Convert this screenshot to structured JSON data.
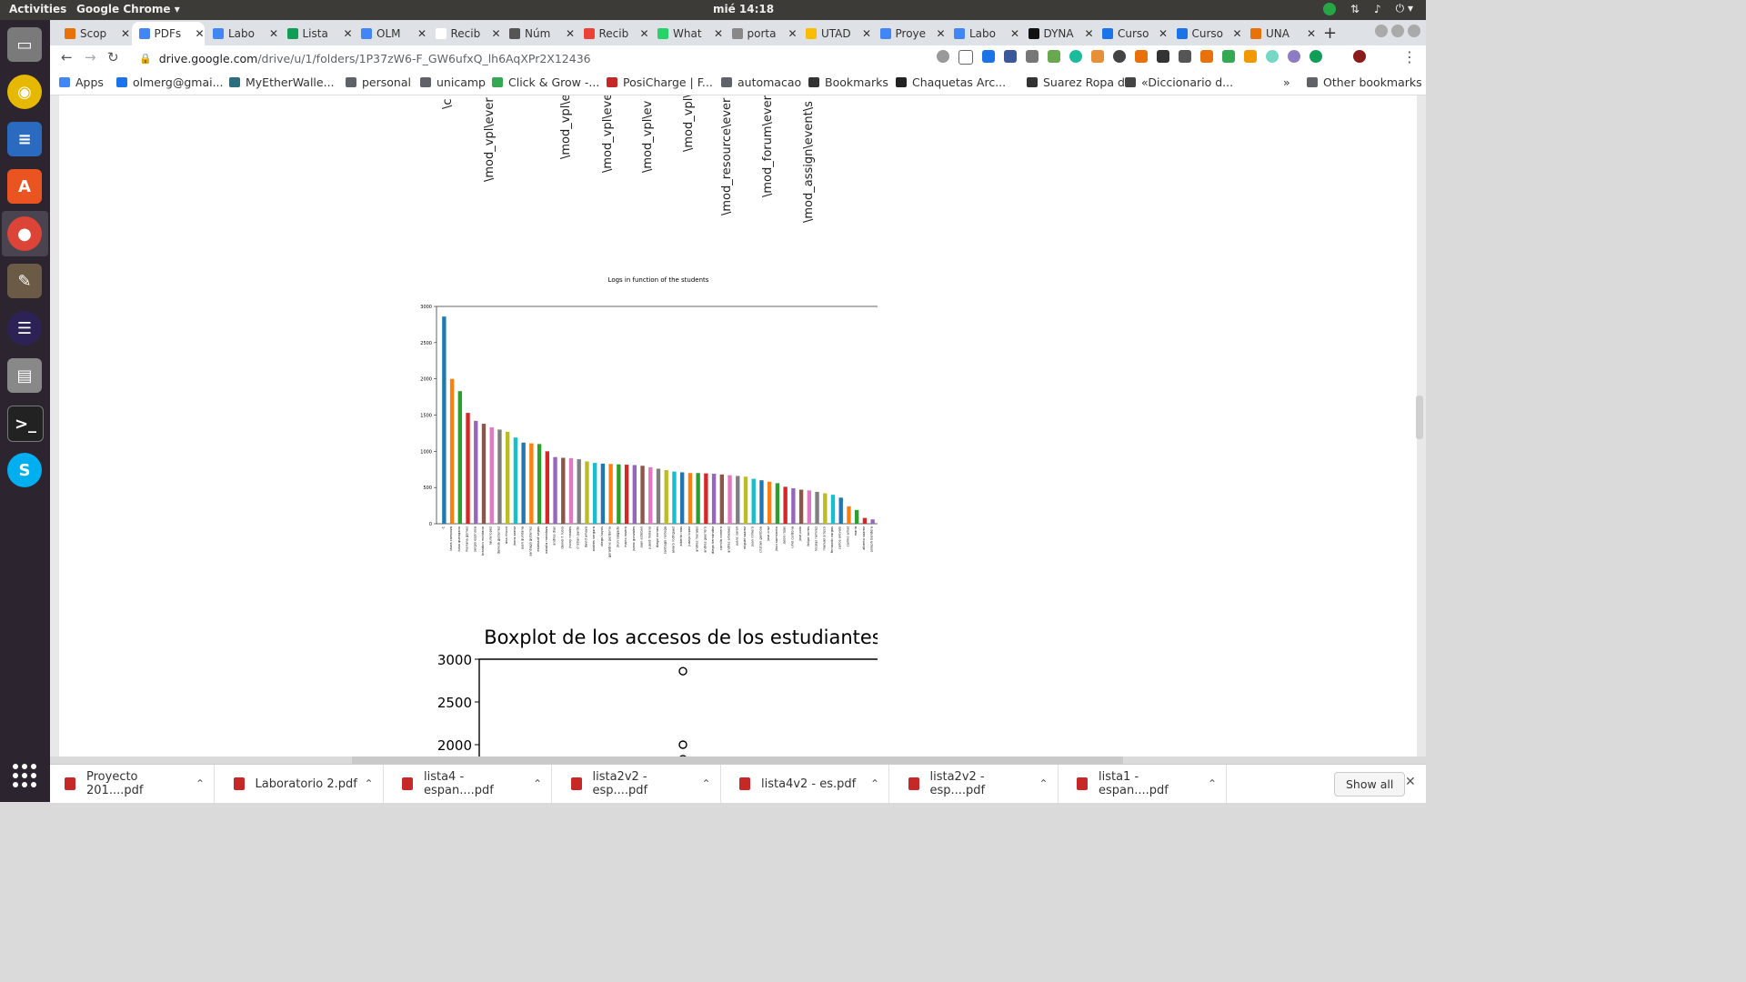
{
  "topbar": {
    "activities": "Activities",
    "app_name": "Google Chrome ▾",
    "clock": "mié 14:18",
    "sys_icons": [
      "network-icon",
      "volume-icon",
      "power-icon"
    ]
  },
  "dock": {
    "items": [
      "files-icon",
      "rhythmbox-icon",
      "writer-icon",
      "software-center-icon",
      "chrome-icon",
      "gimp-icon",
      "eclipse-icon",
      "scanner-icon",
      "terminal-icon",
      "skype-icon"
    ]
  },
  "tabs": [
    {
      "label": "Scop",
      "color": "#e8710a"
    },
    {
      "label": "PDFs",
      "color": "#4285f4",
      "active": true
    },
    {
      "label": "Labo",
      "color": "#4285f4"
    },
    {
      "label": "Lista",
      "color": "#0f9d58"
    },
    {
      "label": "OLM",
      "color": "#4285f4"
    },
    {
      "label": "Recib",
      "color": "#ffffff"
    },
    {
      "label": "Núm",
      "color": "#555555"
    },
    {
      "label": "Recib",
      "color": "#ea4335"
    },
    {
      "label": "What",
      "color": "#25d366"
    },
    {
      "label": "porta",
      "color": "#888888"
    },
    {
      "label": "UTAD",
      "color": "#fbbc04"
    },
    {
      "label": "Proye",
      "color": "#4285f4"
    },
    {
      "label": "Labo",
      "color": "#4285f4"
    },
    {
      "label": "DYNA",
      "color": "#111111"
    },
    {
      "label": "Curso",
      "color": "#1a73e8"
    },
    {
      "label": "Curso",
      "color": "#1a73e8"
    },
    {
      "label": "UNA",
      "color": "#e8710a"
    }
  ],
  "new_tab": "+",
  "toolbar": {
    "back": "←",
    "forward": "→",
    "reload": "↻",
    "url_host": "drive.google.com",
    "url_path": "/drive/u/1/folders/1P37zW6-F_GW6ufxQ_lh6AqXPr2X12436",
    "menu": "⋮"
  },
  "bookmarks": {
    "items": [
      {
        "label": "Apps",
        "icon": "apps-icon"
      },
      {
        "label": "olmerg@gmai...",
        "icon": "mail-icon"
      },
      {
        "label": "MyEtherWalle...",
        "icon": "wallet-icon"
      },
      {
        "label": "personal",
        "icon": "folder-icon"
      },
      {
        "label": "unicamp",
        "icon": "folder-icon"
      },
      {
        "label": "Click & Grow -...",
        "icon": "leaf-icon"
      },
      {
        "label": "PosiCharge | F...",
        "icon": "charge-icon"
      },
      {
        "label": "automacao",
        "icon": "folder-icon"
      },
      {
        "label": "Bookmarks",
        "icon": "star-icon"
      },
      {
        "label": "Chaquetas Arc...",
        "icon": "jacket-icon"
      },
      {
        "label": "Suarez Ropa d...",
        "icon": "shirt-icon"
      },
      {
        "label": "«Diccionario d...",
        "icon": "globe-icon"
      }
    ],
    "overflow": "»",
    "other": "Other bookmarks"
  },
  "doc": {
    "rotated_labels": [
      "\\c",
      "\\mod_vpl\\ever",
      "\\mod_vpl\\e",
      "\\mod_vpl\\ever",
      "\\mod_vpl\\ev",
      "\\mod_vpl\\",
      "\\mod_resource\\ever",
      "\\mod_forum\\ever",
      "\\mod_assign\\event\\s"
    ]
  },
  "chart_data": [
    {
      "type": "bar",
      "title": "Logs in function of the students",
      "ylim": [
        0,
        3000
      ],
      "yticks": [
        0,
        500,
        1000,
        1500,
        2000,
        2500,
        3000
      ],
      "colors": [
        "#1f77b4",
        "#ff7f0e",
        "#2ca02c",
        "#d62728",
        "#9467bd",
        "#8c564b",
        "#e377c2",
        "#7f7f7f",
        "#bcbd22",
        "#17becf"
      ],
      "categories": [
        "-1",
        "laura campoza",
        "luisa quenqano",
        "mariana gomez",
        "sergio espinosa",
        "brandon montano",
        "laura lopez",
        "daniela gutierrez",
        "ana rincon",
        "jhons saenz",
        "juan quintana",
        "santiago gutierrez",
        "estebanf vegas",
        "natalia mendoza",
        "andres dias",
        "daniel f. rubio",
        "jhony rosales",
        "cristian pardo",
        "david amaya",
        "andres vergara",
        "diego hoyos",
        "geraldine perdomo",
        "jhon salgado",
        "mario rosero",
        "juanc gonzales",
        "juan esteban",
        "juand molano",
        "diego nomes",
        "santiago noriega",
        "alvaro rodriguez",
        "alberto roas",
        "juanjo lopez",
        "andres morales",
        "andres guerrero",
        "diego hernandez",
        "camila romero",
        "andres arbelaez",
        "juanc sarah",
        "miguel suarez",
        "juan romero",
        "cristian gamboa",
        "jose cruz",
        "jhon sarmiento",
        "jason rojas",
        "uriel cardona",
        "jose polo",
        "felipe torres",
        "nicolas ramirez",
        "manuel orozco",
        "fernando vargas",
        "carlos arevalo",
        "camilo amat",
        "maria",
        "alberto suarez",
        "joseph bandera"
      ],
      "values": [
        2860,
        2000,
        1830,
        1530,
        1420,
        1380,
        1330,
        1300,
        1270,
        1190,
        1120,
        1110,
        1100,
        1000,
        920,
        910,
        905,
        890,
        860,
        840,
        830,
        825,
        820,
        815,
        810,
        800,
        780,
        760,
        740,
        720,
        710,
        700,
        700,
        695,
        690,
        680,
        670,
        660,
        650,
        620,
        600,
        580,
        560,
        510,
        490,
        470,
        460,
        440,
        420,
        400,
        360,
        240,
        190,
        80,
        60
      ]
    },
    {
      "type": "boxplot",
      "title": "Boxplot de los accesos de los estudiantes",
      "ylim_visible": [
        1850,
        3000
      ],
      "yticks": [
        2000,
        2500,
        3000
      ],
      "outliers": [
        2860,
        2000,
        1830
      ]
    }
  ],
  "downloads": [
    {
      "label": "Proyecto 201....pdf"
    },
    {
      "label": "Laboratorio 2.pdf"
    },
    {
      "label": "lista4 - espan....pdf"
    },
    {
      "label": "lista2v2 -esp....pdf"
    },
    {
      "label": "lista4v2 - es.pdf"
    },
    {
      "label": "lista2v2 -esp....pdf"
    },
    {
      "label": "lista1 -espan....pdf"
    }
  ],
  "show_all": "Show all",
  "shelf_close": "✕"
}
